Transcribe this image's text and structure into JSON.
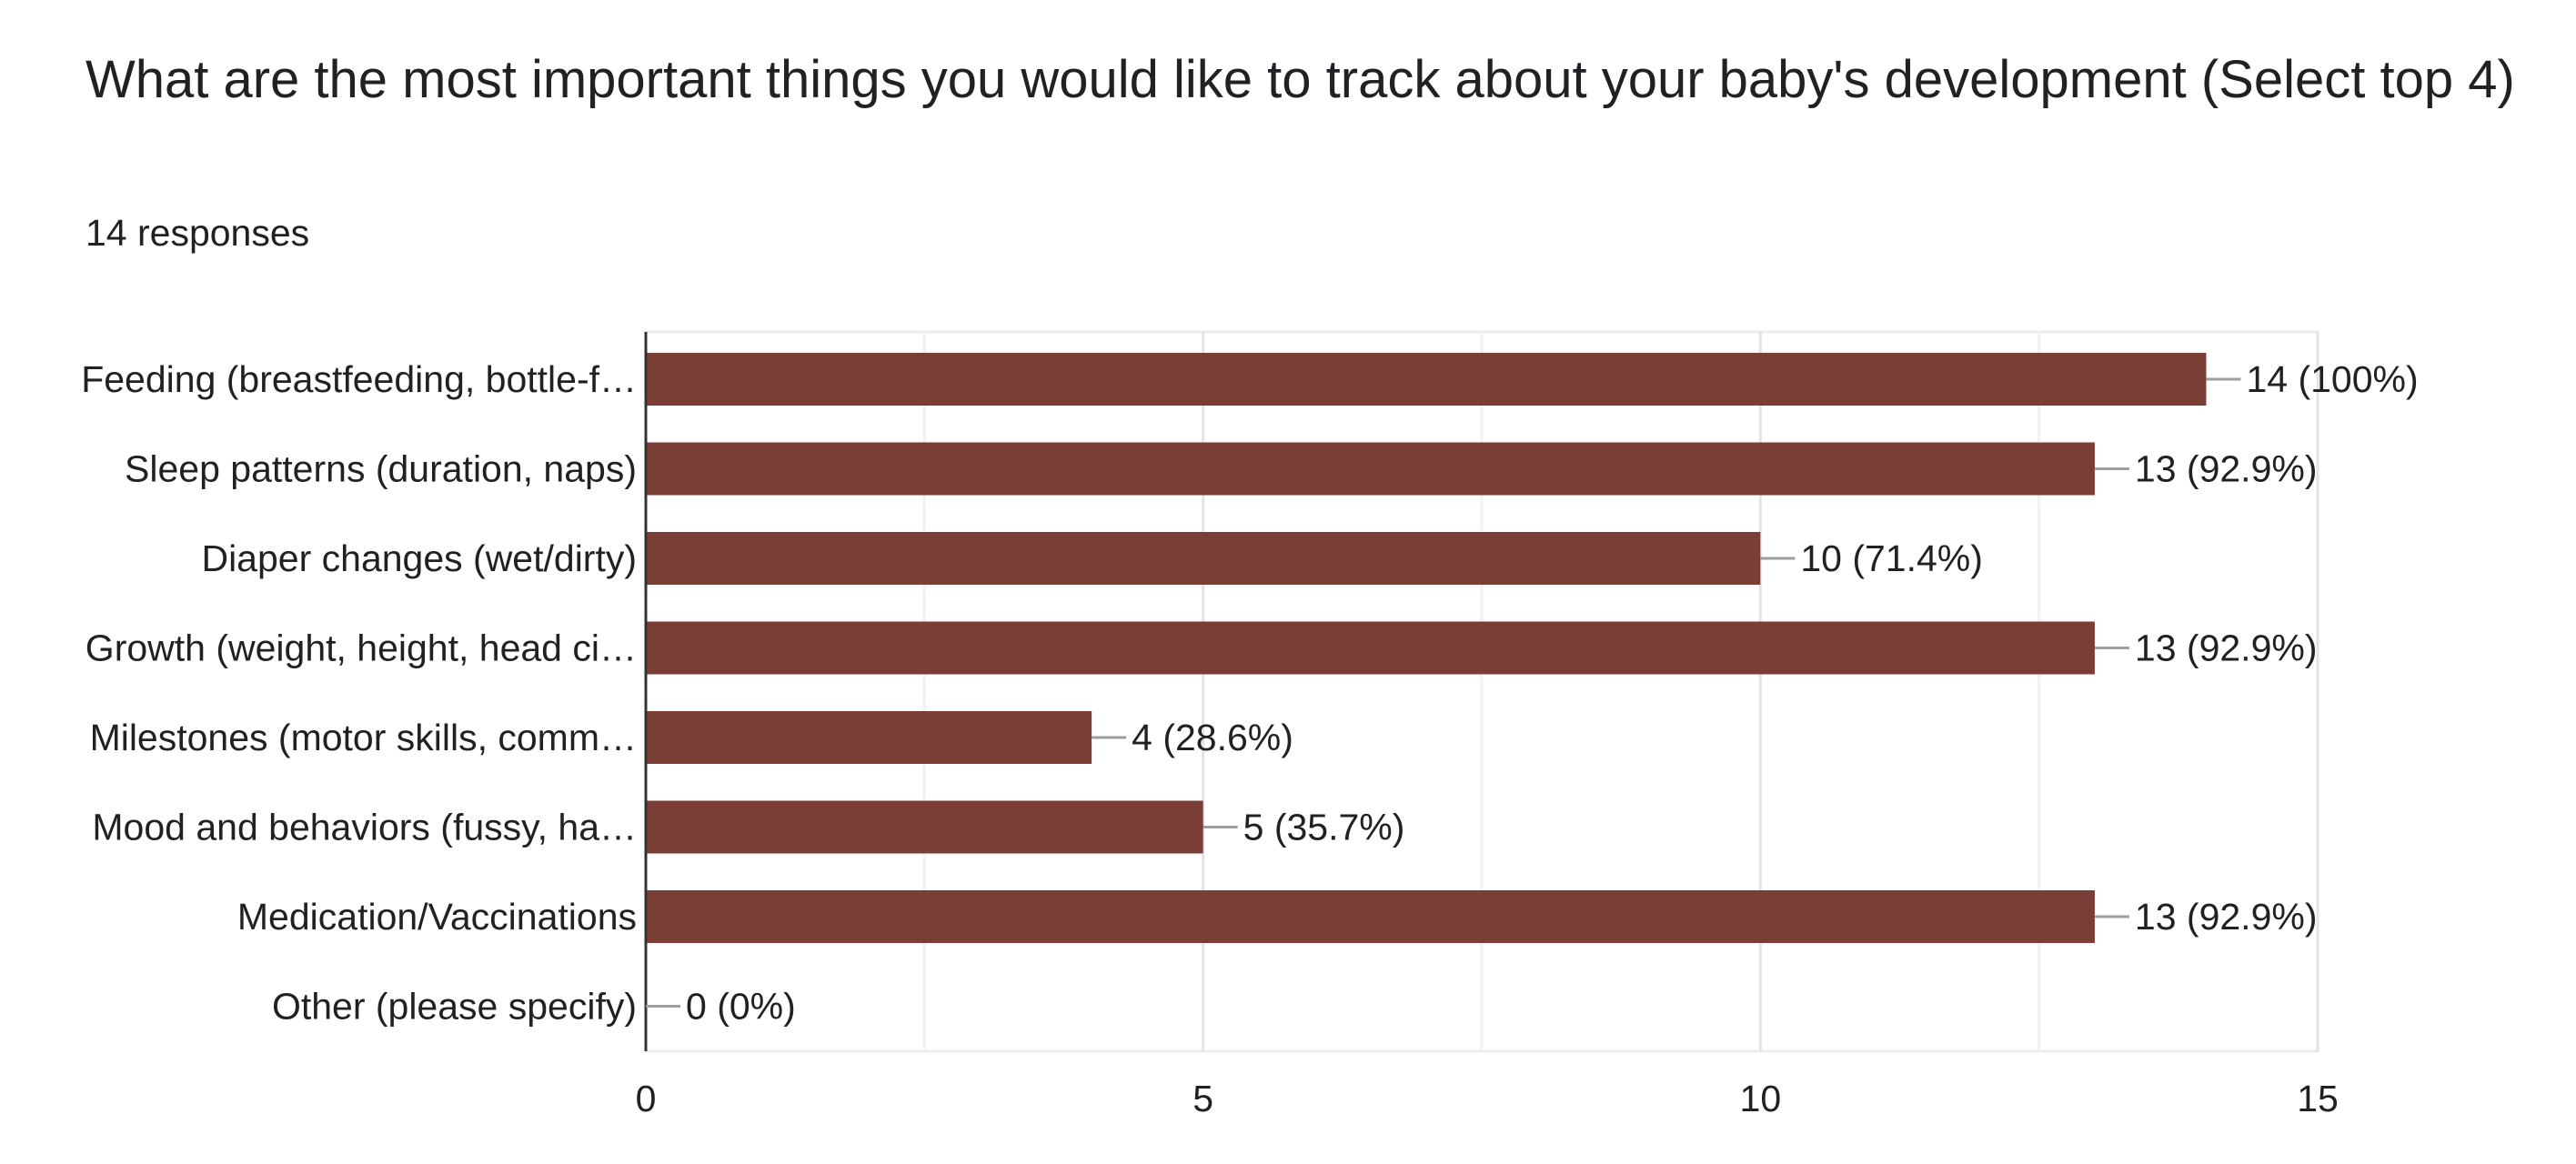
{
  "question": {
    "title": "What are the most important things you would like to track about your baby's development (Select top 4)",
    "responses": "14 responses"
  },
  "chart_data": {
    "type": "bar",
    "orientation": "horizontal",
    "categories": [
      "Feeding (breastfeeding, bottle-f…",
      "Sleep patterns (duration, naps)",
      "Diaper changes (wet/dirty)",
      "Growth (weight, height, head ci…",
      "Milestones (motor skills, comm…",
      "Mood and behaviors (fussy, ha…",
      "Medication/Vaccinations",
      "Other (please specify)"
    ],
    "values": [
      14,
      13,
      10,
      13,
      4,
      5,
      13,
      0
    ],
    "data_labels": [
      "14 (100%)",
      "13 (92.9%)",
      "10 (71.4%)",
      "13 (92.9%)",
      "4 (28.6%)",
      "5 (35.7%)",
      "13 (92.9%)",
      "0 (0%)"
    ],
    "xlim": [
      0,
      15
    ],
    "xticks": [
      0,
      5,
      10,
      15
    ],
    "grid": true,
    "bar_color": "#7a3e36"
  }
}
